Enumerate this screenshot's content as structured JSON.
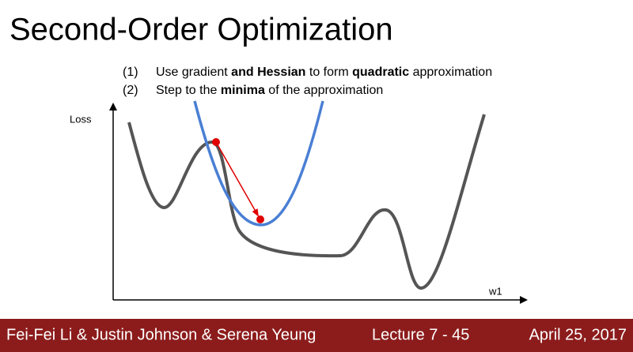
{
  "header": {
    "title": "Second-Order Optimization"
  },
  "list": [
    {
      "number": "(1)",
      "parts": [
        "Use gradient ",
        "and Hessian",
        " to form ",
        "quadratic",
        " approximation"
      ]
    },
    {
      "number": "(2)",
      "parts": [
        "Step to the ",
        "minima",
        " of the approximation"
      ]
    }
  ],
  "diagram": {
    "y_label": "Loss",
    "x_label": "w1"
  },
  "footer": {
    "authors": "Fei-Fei Li & Justin Johnson & Serena Yeung",
    "lecture": "Lecture 7 - 45",
    "date": "April 25, 2017"
  }
}
